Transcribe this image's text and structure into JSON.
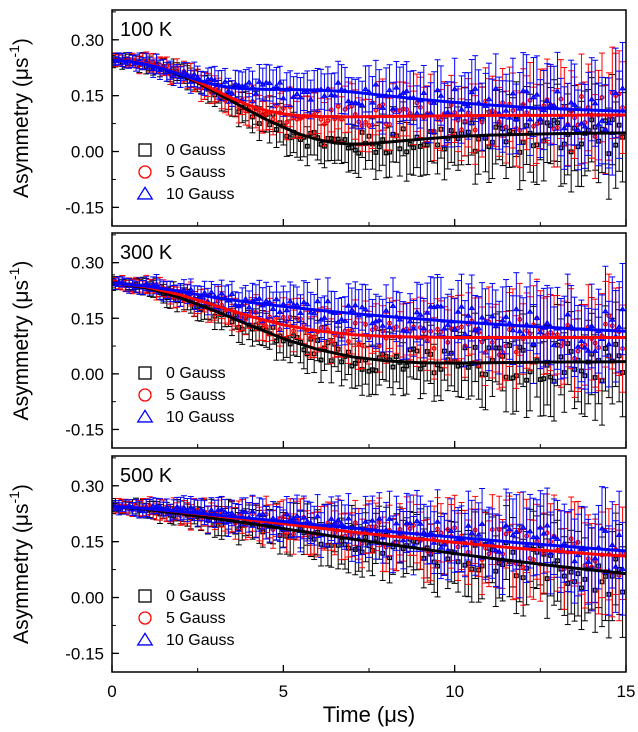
{
  "figure": {
    "xlabel": "Time (μs)",
    "ylabel": "Asymmetry (μs",
    "ylabel_sup": "-1",
    "ylabel_close": ")"
  },
  "chart_data": [
    {
      "type": "scatter",
      "title": "100 K",
      "xlabel": "Time (μs)",
      "ylabel": "Asymmetry (μs-1)",
      "xlim": [
        0,
        15
      ],
      "ylim": [
        -0.2,
        0.38
      ],
      "xticks": [
        0,
        5,
        10,
        15
      ],
      "yticks": [
        -0.15,
        0.0,
        0.15,
        0.3
      ],
      "ytick_labels": [
        "-0.15",
        "0.00",
        "0.15",
        "0.30"
      ],
      "xtick_labels": [
        "0",
        "5",
        "10",
        "15"
      ],
      "legend": "bottom-left",
      "series": [
        {
          "name": "0 Gauss",
          "color": "#000000",
          "marker": "square",
          "fit": {
            "x": [
              0,
              0.5,
              1,
              1.5,
              2,
              2.5,
              3,
              3.5,
              4,
              4.5,
              5,
              5.5,
              6,
              6.5,
              7,
              7.5,
              8,
              9,
              10,
              11,
              12,
              13,
              14,
              15
            ],
            "y": [
              0.245,
              0.243,
              0.235,
              0.222,
              0.205,
              0.185,
              0.16,
              0.135,
              0.11,
              0.086,
              0.065,
              0.046,
              0.032,
              0.023,
              0.02,
              0.021,
              0.025,
              0.033,
              0.04,
              0.044,
              0.046,
              0.048,
              0.049,
              0.05
            ]
          },
          "err_x": [
            0,
            1.1,
            1.6,
            2.1,
            2.6,
            3.1,
            3.6,
            4.1,
            4.6,
            5.1,
            5.6,
            6.1,
            6.6,
            7.1,
            7.6,
            8.1,
            8.6,
            9.1,
            9.6,
            10.1,
            10.6,
            11.1,
            11.6,
            12.1,
            12.6,
            13.1,
            13.6,
            14.1,
            14.6,
            15
          ]
        },
        {
          "name": "5 Gauss",
          "color": "#ff0000",
          "marker": "circle",
          "fit": {
            "x": [
              0,
              0.5,
              1,
              1.5,
              2,
              2.5,
              3,
              3.5,
              4,
              4.5,
              5,
              5.5,
              6,
              7,
              8,
              9,
              10,
              11,
              12,
              13,
              14,
              15
            ],
            "y": [
              0.245,
              0.243,
              0.236,
              0.224,
              0.208,
              0.188,
              0.165,
              0.143,
              0.124,
              0.11,
              0.101,
              0.096,
              0.094,
              0.093,
              0.094,
              0.095,
              0.096,
              0.097,
              0.097,
              0.097,
              0.098,
              0.098
            ]
          }
        },
        {
          "name": "10 Gauss",
          "color": "#0000ff",
          "marker": "triangle",
          "fit": {
            "x": [
              0,
              0.5,
              1,
              1.5,
              2,
              2.5,
              3,
              3.5,
              4,
              4.5,
              5,
              6,
              7,
              8,
              9,
              10,
              11,
              12,
              13,
              14,
              15
            ],
            "y": [
              0.245,
              0.242,
              0.234,
              0.222,
              0.207,
              0.192,
              0.179,
              0.171,
              0.168,
              0.167,
              0.167,
              0.165,
              0.16,
              0.15,
              0.14,
              0.132,
              0.125,
              0.119,
              0.115,
              0.111,
              0.108
            ]
          }
        }
      ]
    },
    {
      "type": "scatter",
      "title": "300 K",
      "xlabel": "Time (μs)",
      "ylabel": "Asymmetry (μs-1)",
      "xlim": [
        0,
        15
      ],
      "ylim": [
        -0.2,
        0.38
      ],
      "xticks": [
        0,
        5,
        10,
        15
      ],
      "yticks": [
        -0.15,
        0.0,
        0.15,
        0.3
      ],
      "ytick_labels": [
        "-0.15",
        "0.00",
        "0.15",
        "0.30"
      ],
      "xtick_labels": [
        "0",
        "5",
        "10",
        "15"
      ],
      "legend": "bottom-left",
      "series": [
        {
          "name": "0 Gauss",
          "color": "#000000",
          "marker": "square",
          "fit": {
            "x": [
              0,
              1,
              2,
              3,
              4,
              5,
              6,
              7,
              8,
              9,
              10,
              11,
              12,
              13,
              14,
              15
            ],
            "y": [
              0.245,
              0.232,
              0.205,
              0.17,
              0.132,
              0.095,
              0.066,
              0.046,
              0.035,
              0.03,
              0.029,
              0.03,
              0.031,
              0.032,
              0.032,
              0.033
            ]
          }
        },
        {
          "name": "5 Gauss",
          "color": "#ff0000",
          "marker": "circle",
          "fit": {
            "x": [
              0,
              1,
              2,
              3,
              4,
              5,
              6,
              7,
              8,
              9,
              10,
              11,
              12,
              13,
              14,
              15
            ],
            "y": [
              0.245,
              0.235,
              0.213,
              0.185,
              0.156,
              0.132,
              0.116,
              0.106,
              0.101,
              0.099,
              0.098,
              0.098,
              0.098,
              0.098,
              0.098,
              0.098
            ]
          }
        },
        {
          "name": "10 Gauss",
          "color": "#0000ff",
          "marker": "triangle",
          "fit": {
            "x": [
              0,
              1,
              2,
              3,
              4,
              5,
              6,
              7,
              8,
              9,
              10,
              11,
              12,
              13,
              14,
              15
            ],
            "y": [
              0.245,
              0.237,
              0.222,
              0.206,
              0.193,
              0.182,
              0.172,
              0.163,
              0.155,
              0.148,
              0.141,
              0.135,
              0.129,
              0.124,
              0.119,
              0.115
            ]
          }
        }
      ]
    },
    {
      "type": "scatter",
      "title": "500 K",
      "xlabel": "Time (μs)",
      "ylabel": "Asymmetry (μs-1)",
      "xlim": [
        0,
        15
      ],
      "ylim": [
        -0.2,
        0.38
      ],
      "xticks": [
        0,
        5,
        10,
        15
      ],
      "yticks": [
        -0.15,
        0.0,
        0.15,
        0.3
      ],
      "ytick_labels": [
        "-0.15",
        "0.00",
        "0.15",
        "0.30"
      ],
      "xtick_labels": [
        "0",
        "5",
        "10",
        "15"
      ],
      "legend": "bottom-left",
      "series": [
        {
          "name": "0 Gauss",
          "color": "#000000",
          "marker": "square",
          "fit": {
            "x": [
              0,
              1,
              2,
              3,
              4,
              5,
              6,
              7,
              8,
              9,
              10,
              11,
              12,
              13,
              14,
              15
            ],
            "y": [
              0.245,
              0.237,
              0.225,
              0.212,
              0.199,
              0.185,
              0.171,
              0.157,
              0.144,
              0.131,
              0.118,
              0.106,
              0.095,
              0.084,
              0.074,
              0.064
            ]
          }
        },
        {
          "name": "5 Gauss",
          "color": "#ff0000",
          "marker": "circle",
          "fit": {
            "x": [
              0,
              1,
              2,
              3,
              4,
              5,
              6,
              7,
              8,
              9,
              10,
              11,
              12,
              13,
              14,
              15
            ],
            "y": [
              0.245,
              0.239,
              0.23,
              0.22,
              0.209,
              0.198,
              0.187,
              0.176,
              0.166,
              0.157,
              0.148,
              0.139,
              0.131,
              0.124,
              0.117,
              0.111
            ]
          }
        },
        {
          "name": "10 Gauss",
          "color": "#0000ff",
          "marker": "triangle",
          "fit": {
            "x": [
              0,
              1,
              2,
              3,
              4,
              5,
              6,
              7,
              8,
              9,
              10,
              11,
              12,
              13,
              14,
              15
            ],
            "y": [
              0.245,
              0.239,
              0.231,
              0.222,
              0.213,
              0.204,
              0.195,
              0.187,
              0.178,
              0.17,
              0.162,
              0.154,
              0.146,
              0.139,
              0.132,
              0.125
            ]
          }
        }
      ]
    }
  ]
}
